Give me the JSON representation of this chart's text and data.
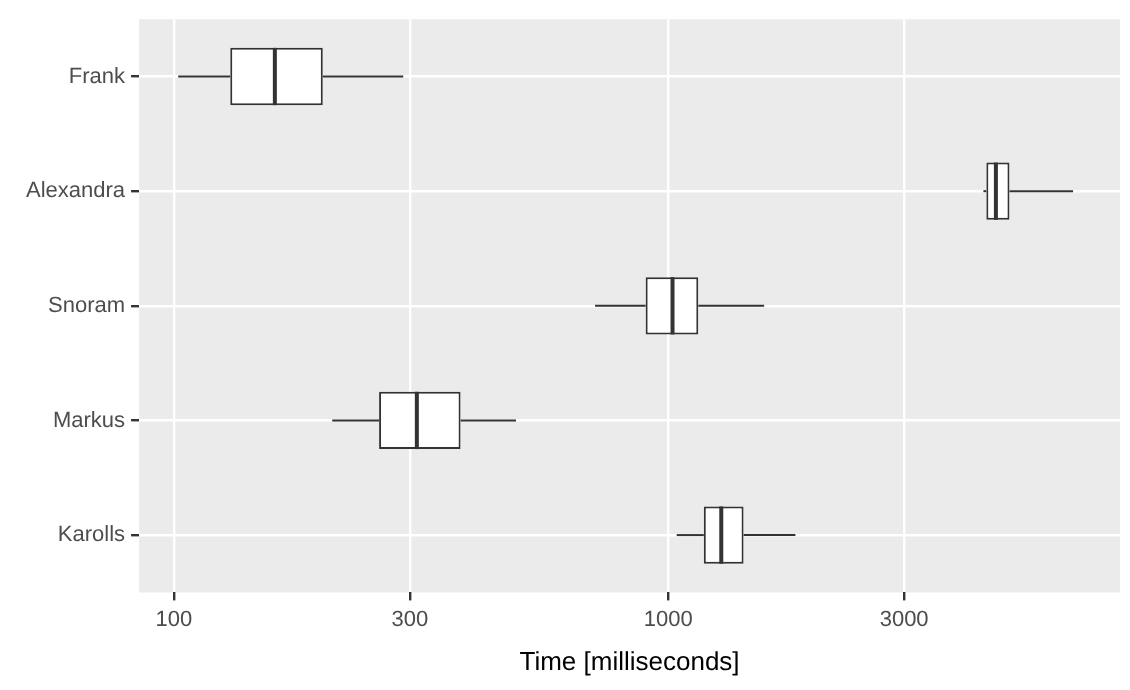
{
  "chart_data": {
    "type": "box",
    "orientation": "horizontal",
    "xlabel": "Time [milliseconds]",
    "categories": [
      "Frank",
      "Alexandra",
      "Snoram",
      "Markus",
      "Karolls"
    ],
    "color": "#333333",
    "boxes": [
      {
        "low": 102,
        "q1": 130,
        "median": 160,
        "q3": 200,
        "high": 291
      },
      {
        "low": 4340,
        "q1": 4400,
        "median": 4600,
        "q3": 4900,
        "high": 6590
      },
      {
        "low": 711,
        "q1": 900,
        "median": 1020,
        "q3": 1150,
        "high": 1563
      },
      {
        "low": 209,
        "q1": 260,
        "median": 310,
        "q3": 380,
        "high": 492
      },
      {
        "low": 1040,
        "q1": 1180,
        "median": 1280,
        "q3": 1420,
        "high": 1808
      }
    ],
    "log": "x",
    "xlim": [
      85,
      8200
    ],
    "xticks": [
      100,
      300,
      1000,
      3000
    ],
    "grid": true,
    "legend": false
  }
}
